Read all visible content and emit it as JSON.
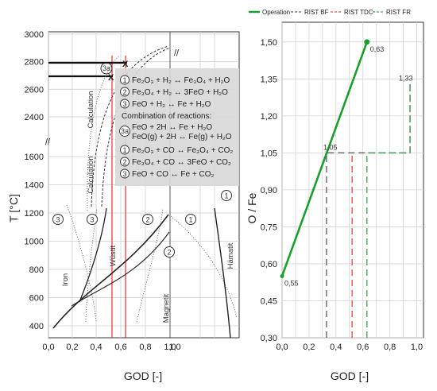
{
  "chart_data": [
    {
      "type": "line",
      "id": "left",
      "xlabel": "GOD [-]",
      "ylabel": "T [°C]",
      "xlim": [
        0,
        1.05
      ],
      "xticks": [
        "0,0",
        "0,2",
        "0,4",
        "0,6",
        "0,8",
        "1,0"
      ],
      "extra_xtick": "1,0",
      "yticks_lower": [
        "400",
        "600",
        "800",
        "1000",
        "1200",
        "1400",
        "1600"
      ],
      "yticks_upper": [
        "2400",
        "2600",
        "2800",
        "3000"
      ],
      "axis_break_label": "//",
      "region_labels": [
        "Iron",
        "Wüstit",
        "Magnetit",
        "Hämatit"
      ],
      "calc_labels": [
        "Calculation",
        "Calculation"
      ],
      "marker_labels": [
        "3a"
      ],
      "reactions_h2": [
        {
          "num": "1",
          "text": "Fe₂O₃ + H₂ ↔ Fe₃O₄ + H₂O"
        },
        {
          "num": "2",
          "text": "Fe₃O₄ + H₂ ↔ 3FeO + H₂O"
        },
        {
          "num": "3",
          "text": "FeO + H₂ ↔ Fe + H₂O"
        }
      ],
      "combination_title": "Combination of reactions:",
      "reaction_3a": {
        "num": "3a",
        "line1": "FeO + 2H ↔ Fe + H₂O",
        "line2": "FeO(g) + 2H ↔ Fe(g) + H₂O"
      },
      "reactions_co": [
        {
          "num": "1",
          "text": "Fe₂O₃ + CO ↔ Fe₃O₄ + CO₂"
        },
        {
          "num": "2",
          "text": "Fe₃O₄ + CO ↔ 3FeO + CO₂"
        },
        {
          "num": "3",
          "text": "FeO + CO ↔ Fe + CO₂"
        }
      ],
      "circle_labels": [
        "1",
        "2",
        "3",
        "2",
        "3",
        "1"
      ],
      "colors": {
        "accent_red": "#e83030",
        "curve": "#222222",
        "calc_box": "#d9d9d9"
      }
    },
    {
      "type": "line",
      "id": "right",
      "xlabel": "GOD [-]",
      "ylabel": "O / Fe",
      "xlim": [
        0,
        1.05
      ],
      "ylim": [
        0.3,
        1.58
      ],
      "xticks": [
        0,
        0.1,
        0.2,
        0.3,
        0.4,
        0.5,
        0.6,
        0.7,
        0.8,
        0.9,
        1.0
      ],
      "xtick_labels": [
        "0,0",
        "0,2",
        "0,4",
        "0,6",
        "0,8",
        "1,0"
      ],
      "yticks": [
        0.3,
        0.45,
        0.6,
        0.75,
        0.9,
        1.05,
        1.2,
        1.35,
        1.5
      ],
      "ytick_labels": [
        "0,30",
        "0,45",
        "0,60",
        "0,75",
        "0,90",
        "1,05",
        "1,20",
        "1,35",
        "1,50"
      ],
      "legend": [
        "Operation",
        "RIST BF",
        "RIST TDC",
        "RIST FR"
      ],
      "series": [
        {
          "name": "Operation",
          "color": "#1a9e2e",
          "x": [
            0.0,
            0.63
          ],
          "y": [
            0.55,
            1.5
          ]
        },
        {
          "name": "RIST BF",
          "color": "#666666",
          "x": [
            0.33,
            0.33,
            0.95,
            0.95
          ],
          "y": [
            0.3,
            1.05,
            1.05,
            1.33
          ]
        },
        {
          "name": "RIST TDC",
          "color": "#e85050",
          "x": [
            0.52,
            0.52
          ],
          "y": [
            0.3,
            1.05
          ]
        },
        {
          "name": "RIST FR",
          "color": "#4aa85a",
          "x": [
            0.63,
            0.63,
            0.95,
            0.95
          ],
          "y": [
            0.3,
            1.05,
            1.05,
            1.33
          ]
        }
      ],
      "annotations": [
        {
          "text": "0,55",
          "x": 0.0,
          "y": 0.55
        },
        {
          "text": "0,63",
          "x": 0.63,
          "y": 1.5
        },
        {
          "text": "1,05",
          "x": 0.33,
          "y": 1.05
        },
        {
          "text": "1,33",
          "x": 0.95,
          "y": 1.33
        }
      ]
    }
  ]
}
